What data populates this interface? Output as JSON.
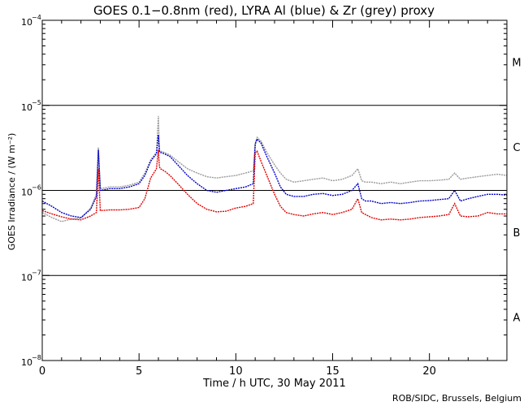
{
  "chart_data": {
    "type": "line",
    "title": "GOES 0.1−0.8nm (red), LYRA Al (blue) & Zr (grey) proxy",
    "xlabel": "Time / h UTC, 30 May 2011",
    "ylabel": "GOES Irradiance / (W m⁻²)",
    "xlim": [
      0,
      24
    ],
    "ylim_log10": [
      -8,
      -4
    ],
    "x_ticks": [
      {
        "value": 0,
        "label": "0"
      },
      {
        "value": 5,
        "label": "5"
      },
      {
        "value": 10,
        "label": "10"
      },
      {
        "value": 15,
        "label": "15"
      },
      {
        "value": 20,
        "label": "20"
      }
    ],
    "y_ticks": [
      {
        "exp": -4,
        "base": "10",
        "sup": "−4"
      },
      {
        "exp": -5,
        "base": "10",
        "sup": "−5"
      },
      {
        "exp": -6,
        "base": "10",
        "sup": "−6"
      },
      {
        "exp": -7,
        "base": "10",
        "sup": "−7"
      },
      {
        "exp": -8,
        "base": "10",
        "sup": "−8"
      }
    ],
    "reference_lines_log10": [
      -5,
      -6,
      -7
    ],
    "flare_classes": [
      {
        "label": "M",
        "log10": -4.5
      },
      {
        "label": "C",
        "log10": -5.5
      },
      {
        "label": "B",
        "log10": -6.5
      },
      {
        "label": "A",
        "log10": -7.5
      }
    ],
    "credit": "ROB/SIDC, Brussels, Belgium",
    "series": [
      {
        "name": "GOES 0.1-0.8nm",
        "color": "#e00000",
        "x": [
          0,
          0.5,
          1,
          1.5,
          2,
          2.5,
          2.8,
          2.9,
          3.0,
          3.5,
          4,
          4.5,
          5,
          5.3,
          5.6,
          5.9,
          6.0,
          6.05,
          6.1,
          6.3,
          6.6,
          7,
          7.5,
          8,
          8.5,
          9,
          9.5,
          10,
          10.5,
          10.9,
          11,
          11.1,
          11.3,
          11.6,
          12,
          12.3,
          12.6,
          13,
          13.5,
          14,
          14.5,
          15,
          15.5,
          16,
          16.3,
          16.5,
          16.7,
          17,
          17.5,
          18,
          18.5,
          19,
          19.5,
          20,
          20.5,
          21,
          21.3,
          21.6,
          22,
          22.5,
          23,
          23.5,
          24
        ],
        "y": [
          5.8e-07,
          5.3e-07,
          4.9e-07,
          4.6e-07,
          4.5e-07,
          5e-07,
          5.5e-07,
          1.8e-06,
          5.8e-07,
          5.9e-07,
          5.9e-07,
          6e-07,
          6.3e-07,
          8e-07,
          1.4e-06,
          1.8e-06,
          3e-06,
          1.9e-06,
          1.8e-06,
          1.7e-06,
          1.5e-06,
          1.2e-06,
          9e-07,
          7e-07,
          6e-07,
          5.6e-07,
          5.7e-07,
          6.2e-07,
          6.5e-07,
          7e-07,
          2.8e-06,
          2.9e-06,
          2.2e-06,
          1.5e-06,
          9e-07,
          6.5e-07,
          5.5e-07,
          5.2e-07,
          5e-07,
          5.3e-07,
          5.5e-07,
          5.2e-07,
          5.5e-07,
          6e-07,
          8e-07,
          5.5e-07,
          5.2e-07,
          4.8e-07,
          4.5e-07,
          4.6e-07,
          4.5e-07,
          4.6e-07,
          4.8e-07,
          4.9e-07,
          5e-07,
          5.2e-07,
          7e-07,
          5e-07,
          4.9e-07,
          5e-07,
          5.5e-07,
          5.3e-07,
          5.3e-07
        ]
      },
      {
        "name": "LYRA Al proxy",
        "color": "#0000cc",
        "x": [
          0,
          0.5,
          1,
          1.5,
          2,
          2.5,
          2.8,
          2.9,
          3.0,
          3.5,
          4,
          4.5,
          5,
          5.3,
          5.6,
          5.9,
          6.0,
          6.05,
          6.1,
          6.3,
          6.6,
          7,
          7.5,
          8,
          8.5,
          9,
          9.5,
          10,
          10.5,
          10.9,
          11,
          11.1,
          11.3,
          11.6,
          12,
          12.3,
          12.6,
          13,
          13.5,
          14,
          14.5,
          15,
          15.5,
          16,
          16.3,
          16.5,
          16.7,
          17,
          17.5,
          18,
          18.5,
          19,
          19.5,
          20,
          20.5,
          21,
          21.3,
          21.6,
          22,
          22.5,
          23,
          23.5,
          24
        ],
        "y": [
          7.5e-07,
          6.5e-07,
          5.5e-07,
          5e-07,
          4.8e-07,
          6e-07,
          8.5e-07,
          3e-06,
          1e-06,
          1.05e-06,
          1.05e-06,
          1.1e-06,
          1.2e-06,
          1.5e-06,
          2.2e-06,
          2.7e-06,
          4.5e-06,
          2.9e-06,
          2.8e-06,
          2.7e-06,
          2.5e-06,
          2e-06,
          1.5e-06,
          1.2e-06,
          1e-06,
          9.5e-07,
          1e-06,
          1.05e-06,
          1.1e-06,
          1.2e-06,
          3.5e-06,
          4e-06,
          3.6e-06,
          2.5e-06,
          1.6e-06,
          1.1e-06,
          9e-07,
          8.5e-07,
          8.5e-07,
          9e-07,
          9.2e-07,
          8.7e-07,
          9e-07,
          1e-06,
          1.2e-06,
          8e-07,
          7.5e-07,
          7.5e-07,
          7e-07,
          7.2e-07,
          7e-07,
          7.2e-07,
          7.5e-07,
          7.6e-07,
          7.8e-07,
          8e-07,
          1e-06,
          7.5e-07,
          8e-07,
          8.5e-07,
          9e-07,
          9e-07,
          8.8e-07
        ]
      },
      {
        "name": "LYRA Zr proxy",
        "color": "#999999",
        "x": [
          0,
          0.5,
          1,
          1.5,
          2,
          2.5,
          2.8,
          2.9,
          3.0,
          3.5,
          4,
          4.5,
          5,
          5.3,
          5.6,
          5.9,
          6.0,
          6.05,
          6.1,
          6.3,
          6.6,
          7,
          7.5,
          8,
          8.5,
          9,
          9.5,
          10,
          10.5,
          10.9,
          11,
          11.1,
          11.3,
          11.6,
          12,
          12.3,
          12.6,
          13,
          13.5,
          14,
          14.5,
          15,
          15.5,
          16,
          16.3,
          16.5,
          16.7,
          17,
          17.5,
          18,
          18.5,
          19,
          19.5,
          20,
          20.5,
          21,
          21.3,
          21.6,
          22,
          22.5,
          23,
          23.5,
          24
        ],
        "y": [
          5.5e-07,
          4.8e-07,
          4.3e-07,
          4.6e-07,
          4.7e-07,
          6.2e-07,
          9e-07,
          3.2e-06,
          1.05e-06,
          1.1e-06,
          1.1e-06,
          1.15e-06,
          1.25e-06,
          1.6e-06,
          2.3e-06,
          2.8e-06,
          7.5e-06,
          3e-06,
          2.9e-06,
          2.8e-06,
          2.6e-06,
          2.2e-06,
          1.8e-06,
          1.6e-06,
          1.45e-06,
          1.4e-06,
          1.45e-06,
          1.5e-06,
          1.6e-06,
          1.7e-06,
          3.6e-06,
          4.2e-06,
          3.8e-06,
          2.8e-06,
          2e-06,
          1.6e-06,
          1.35e-06,
          1.25e-06,
          1.3e-06,
          1.35e-06,
          1.4e-06,
          1.3e-06,
          1.35e-06,
          1.5e-06,
          1.8e-06,
          1.3e-06,
          1.25e-06,
          1.25e-06,
          1.2e-06,
          1.25e-06,
          1.2e-06,
          1.25e-06,
          1.3e-06,
          1.3e-06,
          1.32e-06,
          1.35e-06,
          1.6e-06,
          1.35e-06,
          1.4e-06,
          1.45e-06,
          1.5e-06,
          1.55e-06,
          1.5e-06
        ]
      }
    ]
  }
}
